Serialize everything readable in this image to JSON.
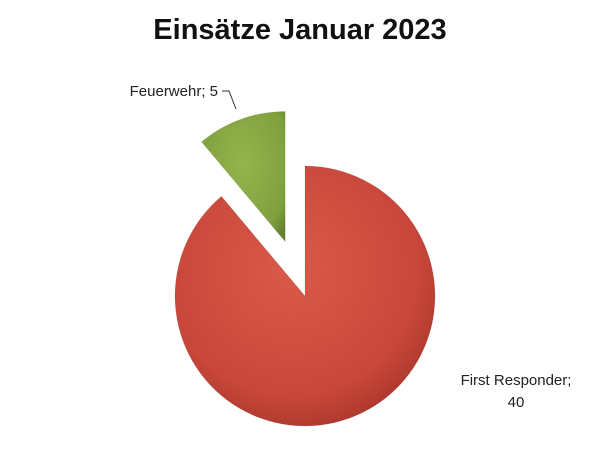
{
  "chart_data": {
    "type": "pie",
    "title": "Einsätze Januar 2023",
    "exploded": true,
    "slices": [
      {
        "label": "First Responder",
        "value": 40,
        "color": "#c8473a",
        "label_lines": [
          "First Responder;",
          "40"
        ]
      },
      {
        "label": "Feuerwehr",
        "value": 5,
        "color": "#7fa03c",
        "label_lines": [
          "Feuerwehr; 5"
        ]
      }
    ]
  }
}
